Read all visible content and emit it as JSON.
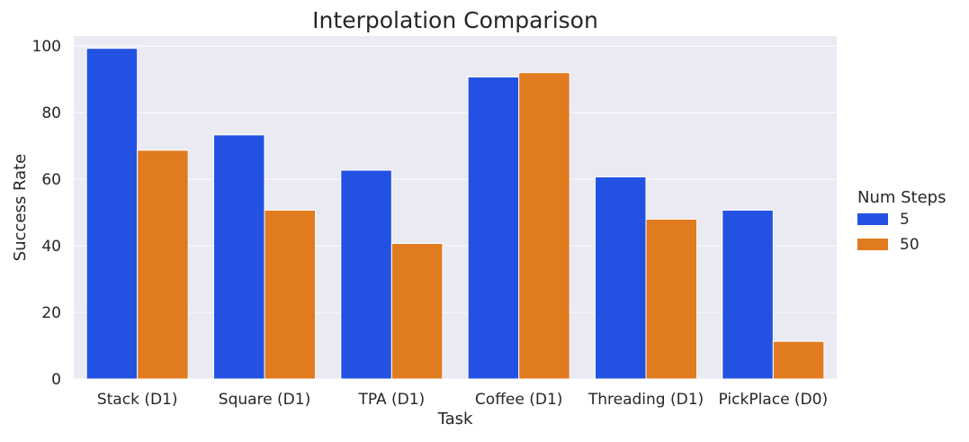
{
  "chart_data": {
    "type": "bar",
    "title": "Interpolation Comparison",
    "xlabel": "Task",
    "ylabel": "Success Rate",
    "ylim": [
      0,
      103
    ],
    "yticks": [
      0,
      20,
      40,
      60,
      80,
      100
    ],
    "grid": true,
    "categories": [
      "Stack (D1)",
      "Square (D1)",
      "TPA (D1)",
      "Coffee (D1)",
      "Threading (D1)",
      "PickPlace (D0)"
    ],
    "legend": {
      "title": "Num Steps",
      "position": "right"
    },
    "series": [
      {
        "name": "5",
        "color": "#2352e3",
        "values": [
          99.3,
          73.3,
          62.7,
          90.7,
          60.7,
          50.7
        ]
      },
      {
        "name": "50",
        "color": "#e07b1f",
        "values": [
          68.7,
          50.7,
          40.7,
          92.0,
          48.0,
          11.3
        ]
      }
    ],
    "colors": {
      "plot_bg": "#eaeaf2",
      "grid": "#ffffff"
    }
  }
}
